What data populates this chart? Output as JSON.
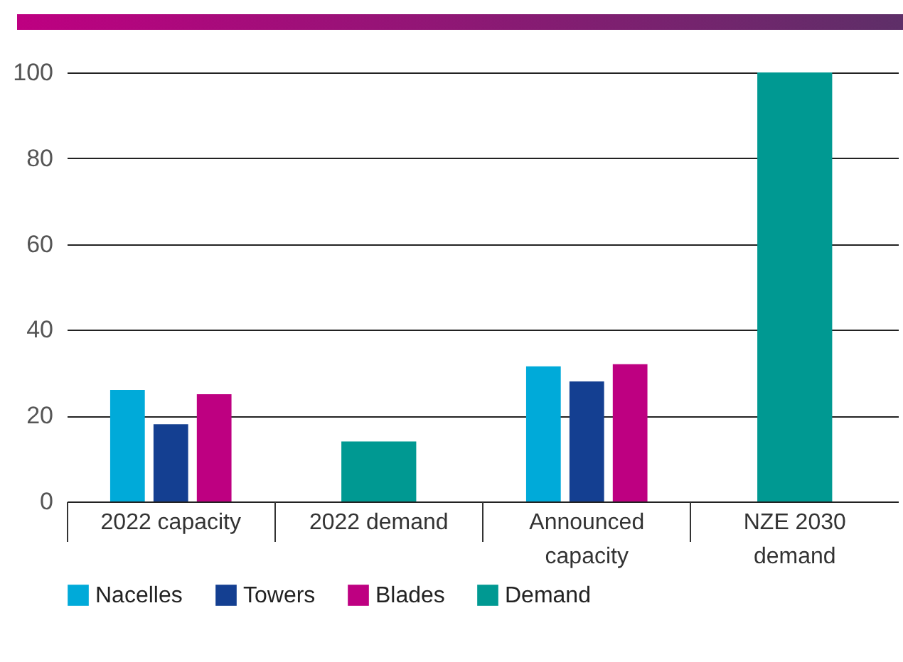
{
  "chart_data": {
    "type": "bar",
    "categories": [
      "2022 capacity",
      "2022 demand",
      "Announced capacity",
      "NZE 2030 demand"
    ],
    "series": [
      {
        "name": "Nacelles",
        "color": "#00aad9",
        "values": [
          26,
          null,
          31.5,
          null
        ]
      },
      {
        "name": "Towers",
        "color": "#143f91",
        "values": [
          18,
          null,
          28,
          null
        ]
      },
      {
        "name": "Blades",
        "color": "#be0081",
        "values": [
          25,
          null,
          32,
          null
        ]
      },
      {
        "name": "Demand",
        "color": "#009992",
        "values": [
          null,
          14,
          null,
          100
        ]
      }
    ],
    "ylim": [
      0,
      100
    ],
    "yticks": [
      0,
      20,
      40,
      60,
      80,
      100
    ],
    "grid": "y",
    "legend": "bottom"
  }
}
